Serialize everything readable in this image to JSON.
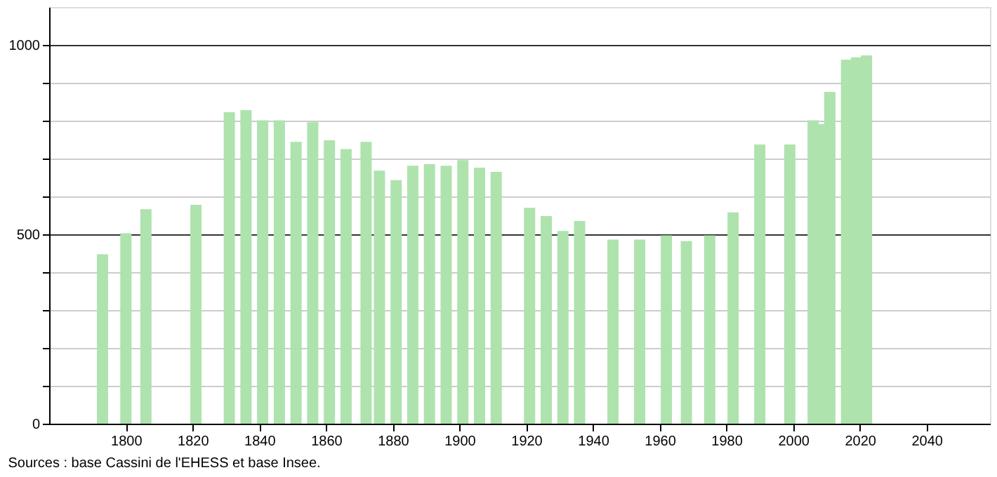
{
  "chart_data": {
    "type": "bar",
    "x": [
      1793,
      1800,
      1806,
      1821,
      1831,
      1836,
      1841,
      1846,
      1851,
      1856,
      1861,
      1866,
      1872,
      1876,
      1881,
      1886,
      1891,
      1896,
      1901,
      1906,
      1911,
      1921,
      1926,
      1931,
      1936,
      1946,
      1954,
      1962,
      1968,
      1975,
      1982,
      1990,
      1999,
      2006,
      2008,
      2011,
      2016,
      2019,
      2022
    ],
    "values": [
      447,
      503,
      566,
      578,
      822,
      828,
      801,
      801,
      744,
      796,
      748,
      725,
      744,
      668,
      643,
      681,
      685,
      681,
      696,
      676,
      665,
      570,
      548,
      509,
      535,
      486,
      486,
      497,
      482,
      497,
      558,
      737,
      737,
      801,
      791,
      876,
      961,
      967,
      972
    ],
    "color": "#aee3ae",
    "xlim": [
      1777,
      2059
    ],
    "xticks": [
      1800,
      1820,
      1840,
      1860,
      1880,
      1900,
      1920,
      1940,
      1960,
      1980,
      2000,
      2020,
      2040
    ],
    "ylim": [
      0,
      1100
    ],
    "yticks": [
      0,
      {
        "value": 100,
        "label": null
      },
      {
        "value": 200,
        "label": null
      },
      {
        "value": 300,
        "label": null
      },
      {
        "value": 400,
        "label": null
      },
      500,
      {
        "value": 600,
        "label": null
      },
      {
        "value": 700,
        "label": null
      },
      {
        "value": 800,
        "label": null
      },
      {
        "value": 900,
        "label": null
      },
      1000
    ],
    "grid": "y",
    "annotations": [
      "Sources : base Cassini de l'EHESS et base Insee."
    ]
  }
}
